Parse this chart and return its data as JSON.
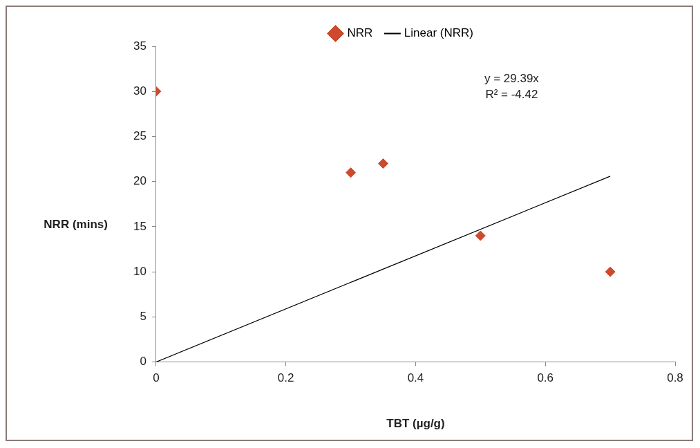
{
  "chart_data": {
    "type": "scatter",
    "xlabel": "TBT (µg/g)",
    "ylabel": "NRR (mins)",
    "xlim": [
      0,
      0.8
    ],
    "xticks": [
      0,
      0.2,
      0.4,
      0.6,
      0.8
    ],
    "ylim": [
      0,
      35
    ],
    "yticks": [
      0,
      5,
      10,
      15,
      20,
      25,
      30,
      35
    ],
    "grid": false,
    "legend": "top",
    "marker": "diamond",
    "series": [
      {
        "name": "NRR",
        "type": "scatter",
        "color": "#cc4a2e",
        "x": [
          0,
          0.3,
          0.35,
          0.5,
          0.7
        ],
        "values": [
          30,
          21,
          22,
          14,
          10
        ]
      },
      {
        "name": "Linear (NRR)",
        "type": "line",
        "color": "#000000",
        "x": [
          0,
          0.7
        ],
        "values": [
          0,
          20.6
        ],
        "marker": "none"
      }
    ],
    "annotations": [
      "y = 29.39x",
      "R² = -4.42"
    ]
  }
}
